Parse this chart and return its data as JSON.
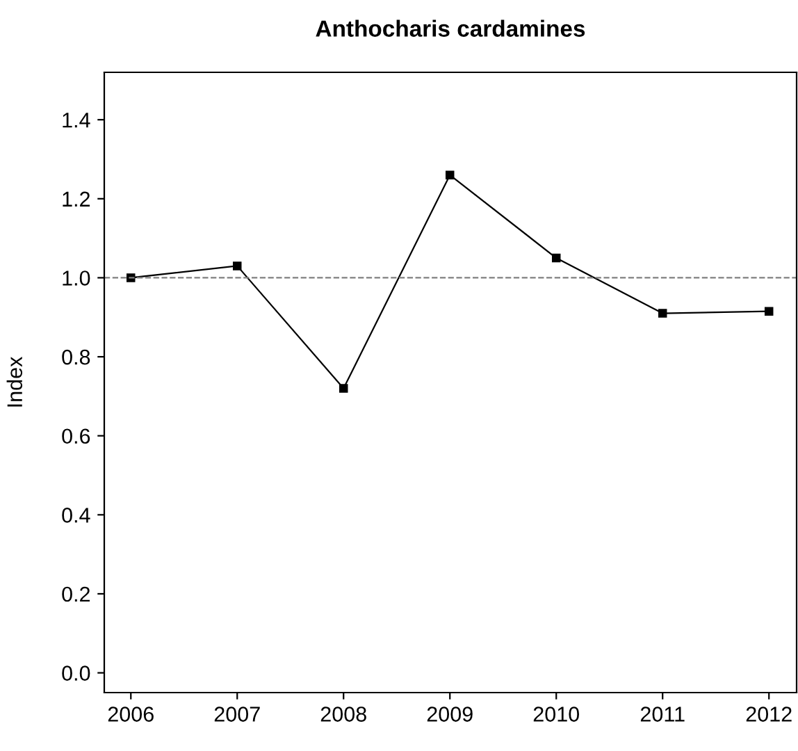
{
  "chart_data": {
    "type": "line",
    "title": "Anthocharis cardamines",
    "ylabel": "Index",
    "x": [
      2006,
      2007,
      2008,
      2009,
      2010,
      2011,
      2012
    ],
    "series": [
      {
        "color": "#000000",
        "values": [
          1.0,
          1.03,
          0.72,
          1.26,
          1.05,
          0.91,
          0.915
        ]
      }
    ],
    "xlim": [
      2005.75,
      2012.26
    ],
    "xticks": [
      2006,
      2007,
      2008,
      2009,
      2010,
      2011,
      2012
    ],
    "ylim": [
      -0.05,
      1.52
    ],
    "yticks": [
      {
        "value": 0,
        "label": "0.0"
      },
      0.2,
      0.4,
      0.6,
      0.8,
      {
        "value": 1,
        "label": "1.0"
      },
      1.2,
      1.4
    ],
    "ref_lines": [
      {
        "axis": "y",
        "value": 1.0,
        "color": "#808080",
        "line_style": "dashed"
      }
    ],
    "marker": "square",
    "line_style": "solid",
    "grid": false,
    "legend": false
  }
}
